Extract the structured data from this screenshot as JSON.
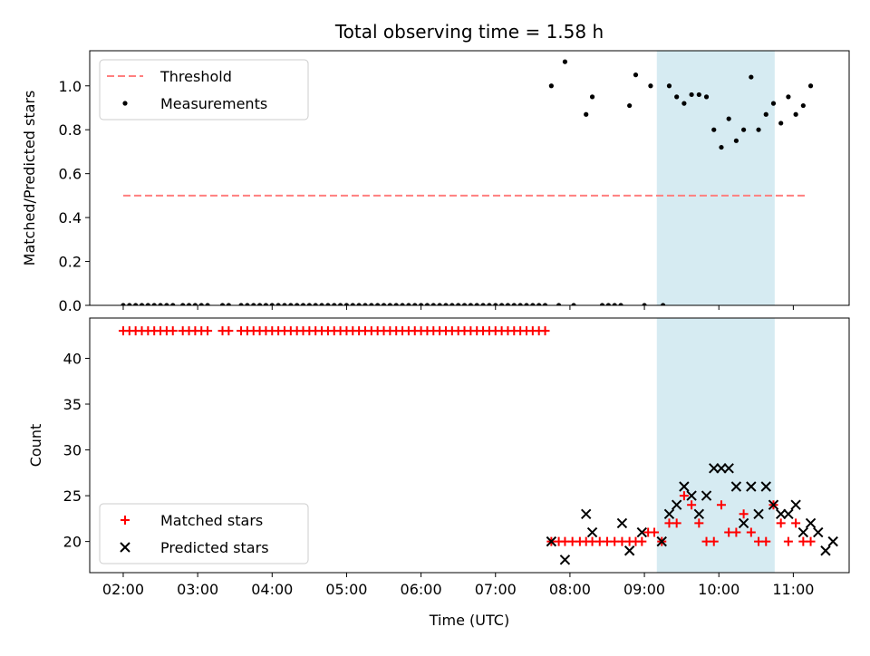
{
  "chart_data": [
    {
      "type": "scatter",
      "title": "Total observing time = 1.58 h",
      "ylabel": "Matched/Predicted stars",
      "xlim": [
        "01:33",
        "11:45"
      ],
      "ylim": [
        0,
        1.16
      ],
      "yticks": [
        "0.0",
        "0.2",
        "0.4",
        "0.6",
        "0.8",
        "1.0"
      ],
      "xticks": [
        "02:00",
        "03:00",
        "04:00",
        "05:00",
        "06:00",
        "07:00",
        "08:00",
        "09:00",
        "10:00",
        "11:00"
      ],
      "highlight_span": [
        "09:10",
        "10:45"
      ],
      "legend": {
        "position": "top-left",
        "entries": [
          "Threshold",
          "Measurements"
        ]
      },
      "threshold": {
        "name": "Threshold",
        "value": 0.5,
        "x_range": [
          "02:00",
          "11:12"
        ],
        "color": "#ff7f7f"
      },
      "series": [
        {
          "name": "Measurements",
          "color": "#000000",
          "points": [
            [
              "02:00",
              0
            ],
            [
              "02:05",
              0
            ],
            [
              "02:10",
              0
            ],
            [
              "02:15",
              0
            ],
            [
              "02:20",
              0
            ],
            [
              "02:25",
              0
            ],
            [
              "02:30",
              0
            ],
            [
              "02:35",
              0
            ],
            [
              "02:40",
              0
            ],
            [
              "02:48",
              0
            ],
            [
              "02:53",
              0
            ],
            [
              "02:58",
              0
            ],
            [
              "03:03",
              0
            ],
            [
              "03:08",
              0
            ],
            [
              "03:20",
              0
            ],
            [
              "03:25",
              0
            ],
            [
              "03:35",
              0
            ],
            [
              "03:40",
              0
            ],
            [
              "03:45",
              0
            ],
            [
              "03:50",
              0
            ],
            [
              "03:55",
              0
            ],
            [
              "04:00",
              0
            ],
            [
              "04:05",
              0
            ],
            [
              "04:10",
              0
            ],
            [
              "04:15",
              0
            ],
            [
              "04:20",
              0
            ],
            [
              "04:25",
              0
            ],
            [
              "04:30",
              0
            ],
            [
              "04:35",
              0
            ],
            [
              "04:40",
              0
            ],
            [
              "04:45",
              0
            ],
            [
              "04:50",
              0
            ],
            [
              "04:55",
              0
            ],
            [
              "05:00",
              0
            ],
            [
              "05:05",
              0
            ],
            [
              "05:10",
              0
            ],
            [
              "05:15",
              0
            ],
            [
              "05:20",
              0
            ],
            [
              "05:25",
              0
            ],
            [
              "05:30",
              0
            ],
            [
              "05:35",
              0
            ],
            [
              "05:40",
              0
            ],
            [
              "05:45",
              0
            ],
            [
              "05:50",
              0
            ],
            [
              "05:55",
              0
            ],
            [
              "06:00",
              0
            ],
            [
              "06:05",
              0
            ],
            [
              "06:10",
              0
            ],
            [
              "06:15",
              0
            ],
            [
              "06:20",
              0
            ],
            [
              "06:25",
              0
            ],
            [
              "06:30",
              0
            ],
            [
              "06:35",
              0
            ],
            [
              "06:40",
              0
            ],
            [
              "06:45",
              0
            ],
            [
              "06:50",
              0
            ],
            [
              "06:55",
              0
            ],
            [
              "07:00",
              0
            ],
            [
              "07:05",
              0
            ],
            [
              "07:10",
              0
            ],
            [
              "07:15",
              0
            ],
            [
              "07:20",
              0
            ],
            [
              "07:25",
              0
            ],
            [
              "07:30",
              0
            ],
            [
              "07:35",
              0
            ],
            [
              "07:40",
              0
            ],
            [
              "07:45",
              1.0
            ],
            [
              "07:51",
              0
            ],
            [
              "07:56",
              1.11
            ],
            [
              "08:03",
              0
            ],
            [
              "08:13",
              0.87
            ],
            [
              "08:18",
              0.95
            ],
            [
              "08:26",
              0
            ],
            [
              "08:31",
              0
            ],
            [
              "08:36",
              0
            ],
            [
              "08:41",
              0
            ],
            [
              "08:48",
              0.91
            ],
            [
              "08:53",
              1.05
            ],
            [
              "09:00",
              0
            ],
            [
              "09:05",
              1.0
            ],
            [
              "09:15",
              0
            ],
            [
              "09:20",
              1.0
            ],
            [
              "09:26",
              0.95
            ],
            [
              "09:32",
              0.92
            ],
            [
              "09:38",
              0.96
            ],
            [
              "09:44",
              0.96
            ],
            [
              "09:50",
              0.95
            ],
            [
              "09:56",
              0.8
            ],
            [
              "10:02",
              0.72
            ],
            [
              "10:08",
              0.85
            ],
            [
              "10:14",
              0.75
            ],
            [
              "10:20",
              0.8
            ],
            [
              "10:26",
              1.04
            ],
            [
              "10:32",
              0.8
            ],
            [
              "10:38",
              0.87
            ],
            [
              "10:44",
              0.92
            ],
            [
              "10:50",
              0.83
            ],
            [
              "10:56",
              0.95
            ],
            [
              "11:02",
              0.87
            ],
            [
              "11:08",
              0.91
            ],
            [
              "11:14",
              1.0
            ]
          ]
        }
      ]
    },
    {
      "type": "scatter",
      "xlabel": "Time (UTC)",
      "ylabel": "Count",
      "xlim": [
        "01:33",
        "11:45"
      ],
      "ylim": [
        16.6,
        44.4
      ],
      "yticks": [
        "20",
        "25",
        "30",
        "35",
        "40"
      ],
      "xticks": [
        "02:00",
        "03:00",
        "04:00",
        "05:00",
        "06:00",
        "07:00",
        "08:00",
        "09:00",
        "10:00",
        "11:00"
      ],
      "highlight_span": [
        "09:10",
        "10:45"
      ],
      "legend": {
        "position": "bottom-left",
        "entries": [
          "Matched stars",
          "Predicted stars"
        ]
      },
      "series": [
        {
          "name": "Matched stars",
          "marker": "plus",
          "color": "#ff0000",
          "points": [
            [
              "02:00",
              43
            ],
            [
              "02:05",
              43
            ],
            [
              "02:10",
              43
            ],
            [
              "02:15",
              43
            ],
            [
              "02:20",
              43
            ],
            [
              "02:25",
              43
            ],
            [
              "02:30",
              43
            ],
            [
              "02:35",
              43
            ],
            [
              "02:40",
              43
            ],
            [
              "02:48",
              43
            ],
            [
              "02:53",
              43
            ],
            [
              "02:58",
              43
            ],
            [
              "03:03",
              43
            ],
            [
              "03:08",
              43
            ],
            [
              "03:20",
              43
            ],
            [
              "03:25",
              43
            ],
            [
              "03:35",
              43
            ],
            [
              "03:40",
              43
            ],
            [
              "03:45",
              43
            ],
            [
              "03:50",
              43
            ],
            [
              "03:55",
              43
            ],
            [
              "04:00",
              43
            ],
            [
              "04:05",
              43
            ],
            [
              "04:10",
              43
            ],
            [
              "04:15",
              43
            ],
            [
              "04:20",
              43
            ],
            [
              "04:25",
              43
            ],
            [
              "04:30",
              43
            ],
            [
              "04:35",
              43
            ],
            [
              "04:40",
              43
            ],
            [
              "04:45",
              43
            ],
            [
              "04:50",
              43
            ],
            [
              "04:55",
              43
            ],
            [
              "05:00",
              43
            ],
            [
              "05:05",
              43
            ],
            [
              "05:10",
              43
            ],
            [
              "05:15",
              43
            ],
            [
              "05:20",
              43
            ],
            [
              "05:25",
              43
            ],
            [
              "05:30",
              43
            ],
            [
              "05:35",
              43
            ],
            [
              "05:40",
              43
            ],
            [
              "05:45",
              43
            ],
            [
              "05:50",
              43
            ],
            [
              "05:55",
              43
            ],
            [
              "06:00",
              43
            ],
            [
              "06:05",
              43
            ],
            [
              "06:10",
              43
            ],
            [
              "06:15",
              43
            ],
            [
              "06:20",
              43
            ],
            [
              "06:25",
              43
            ],
            [
              "06:30",
              43
            ],
            [
              "06:35",
              43
            ],
            [
              "06:40",
              43
            ],
            [
              "06:45",
              43
            ],
            [
              "06:50",
              43
            ],
            [
              "06:55",
              43
            ],
            [
              "07:00",
              43
            ],
            [
              "07:05",
              43
            ],
            [
              "07:10",
              43
            ],
            [
              "07:15",
              43
            ],
            [
              "07:20",
              43
            ],
            [
              "07:25",
              43
            ],
            [
              "07:30",
              43
            ],
            [
              "07:35",
              43
            ],
            [
              "07:40",
              43
            ],
            [
              "07:45",
              20
            ],
            [
              "07:51",
              20
            ],
            [
              "07:56",
              20
            ],
            [
              "08:02",
              20
            ],
            [
              "08:08",
              20
            ],
            [
              "08:13",
              20
            ],
            [
              "08:18",
              20
            ],
            [
              "08:24",
              20
            ],
            [
              "08:30",
              20
            ],
            [
              "08:36",
              20
            ],
            [
              "08:42",
              20
            ],
            [
              "08:48",
              20
            ],
            [
              "08:53",
              20
            ],
            [
              "08:58",
              20
            ],
            [
              "09:03",
              21
            ],
            [
              "09:08",
              21
            ],
            [
              "09:14",
              20
            ],
            [
              "09:20",
              22
            ],
            [
              "09:26",
              22
            ],
            [
              "09:32",
              25
            ],
            [
              "09:38",
              24
            ],
            [
              "09:44",
              22
            ],
            [
              "09:50",
              20
            ],
            [
              "09:56",
              20
            ],
            [
              "10:02",
              24
            ],
            [
              "10:08",
              21
            ],
            [
              "10:14",
              21
            ],
            [
              "10:20",
              23
            ],
            [
              "10:26",
              21
            ],
            [
              "10:32",
              20
            ],
            [
              "10:38",
              20
            ],
            [
              "10:44",
              24
            ],
            [
              "10:50",
              22
            ],
            [
              "10:56",
              20
            ],
            [
              "11:02",
              22
            ],
            [
              "11:08",
              20
            ],
            [
              "11:14",
              20
            ]
          ]
        },
        {
          "name": "Predicted stars",
          "marker": "x",
          "color": "#000000",
          "points": [
            [
              "07:45",
              20
            ],
            [
              "07:56",
              18
            ],
            [
              "08:13",
              23
            ],
            [
              "08:18",
              21
            ],
            [
              "08:42",
              22
            ],
            [
              "08:48",
              19
            ],
            [
              "08:58",
              21
            ],
            [
              "09:14",
              20
            ],
            [
              "09:20",
              23
            ],
            [
              "09:26",
              24
            ],
            [
              "09:32",
              26
            ],
            [
              "09:38",
              25
            ],
            [
              "09:44",
              23
            ],
            [
              "09:50",
              25
            ],
            [
              "09:56",
              28
            ],
            [
              "10:02",
              28
            ],
            [
              "10:08",
              28
            ],
            [
              "10:14",
              26
            ],
            [
              "10:20",
              22
            ],
            [
              "10:26",
              26
            ],
            [
              "10:32",
              23
            ],
            [
              "10:38",
              26
            ],
            [
              "10:44",
              24
            ],
            [
              "10:50",
              23
            ],
            [
              "10:56",
              23
            ],
            [
              "11:02",
              24
            ],
            [
              "11:08",
              21
            ],
            [
              "11:14",
              22
            ],
            [
              "11:20",
              21
            ],
            [
              "11:26",
              19
            ],
            [
              "11:32",
              20
            ]
          ]
        }
      ]
    }
  ]
}
